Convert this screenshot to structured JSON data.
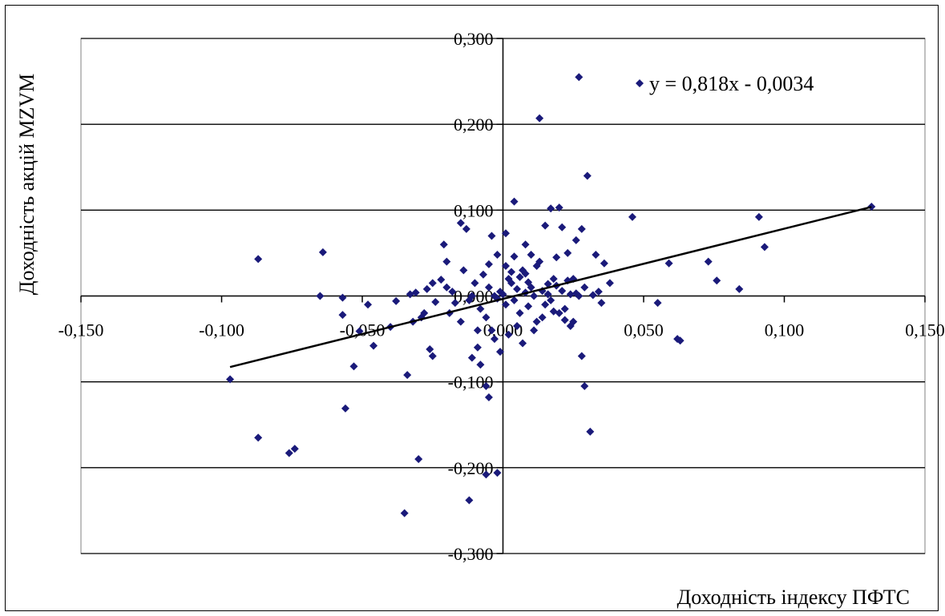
{
  "chart_data": {
    "type": "scatter",
    "xlabel": "Доходність індексу ПФТС",
    "ylabel": "Доходність акцій MZVM",
    "xlim": [
      -0.15,
      0.15
    ],
    "ylim": [
      -0.3,
      0.3
    ],
    "x_ticks": [
      "-0,150",
      "-0,100",
      "-0,050",
      "0,000",
      "0,050",
      "0,100",
      "0,150"
    ],
    "y_ticks": [
      "0,300",
      "0,200",
      "0,100",
      "0,000",
      "-0,100",
      "-0,200",
      "-0,300"
    ],
    "grid": "horizontal",
    "trendline": {
      "label": "y = 0,818x - 0,0034",
      "slope": 0.818,
      "intercept": -0.0034,
      "x_range": [
        -0.097,
        0.131
      ]
    },
    "marker_color": "#1a1a7a",
    "points": [
      [
        -0.097,
        -0.097
      ],
      [
        -0.087,
        -0.165
      ],
      [
        -0.087,
        0.043
      ],
      [
        -0.076,
        -0.183
      ],
      [
        -0.074,
        -0.178
      ],
      [
        -0.064,
        0.051
      ],
      [
        -0.065,
        0.0
      ],
      [
        -0.057,
        -0.002
      ],
      [
        -0.057,
        -0.022
      ],
      [
        -0.056,
        -0.131
      ],
      [
        -0.053,
        -0.082
      ],
      [
        -0.051,
        -0.041
      ],
      [
        -0.048,
        -0.01
      ],
      [
        -0.046,
        -0.058
      ],
      [
        -0.04,
        -0.036
      ],
      [
        -0.038,
        -0.006
      ],
      [
        -0.035,
        -0.253
      ],
      [
        -0.034,
        -0.092
      ],
      [
        -0.033,
        0.002
      ],
      [
        -0.032,
        -0.03
      ],
      [
        -0.031,
        0.004
      ],
      [
        -0.029,
        -0.025
      ],
      [
        -0.028,
        -0.02
      ],
      [
        -0.027,
        0.008
      ],
      [
        -0.026,
        -0.062
      ],
      [
        -0.025,
        -0.07
      ],
      [
        -0.024,
        -0.007
      ],
      [
        -0.022,
        0.019
      ],
      [
        -0.021,
        0.06
      ],
      [
        -0.02,
        0.04
      ],
      [
        -0.019,
        -0.02
      ],
      [
        -0.018,
        0.005
      ],
      [
        -0.017,
        -0.008
      ],
      [
        -0.015,
        -0.03
      ],
      [
        -0.014,
        0.03
      ],
      [
        -0.012,
        -0.005
      ],
      [
        -0.011,
        0.0
      ],
      [
        -0.01,
        0.015
      ],
      [
        -0.009,
        -0.06
      ],
      [
        -0.008,
        -0.015
      ],
      [
        -0.007,
        0.025
      ],
      [
        -0.006,
        -0.025
      ],
      [
        -0.005,
        0.01
      ],
      [
        -0.004,
        -0.04
      ],
      [
        -0.003,
        0.0
      ],
      [
        -0.002,
        -0.003
      ],
      [
        -0.001,
        0.005
      ],
      [
        0.0,
        0.002
      ],
      [
        0.001,
        -0.01
      ],
      [
        0.002,
        0.02
      ],
      [
        0.003,
        0.015
      ],
      [
        0.004,
        -0.005
      ],
      [
        0.005,
        0.008
      ],
      [
        0.006,
        -0.02
      ],
      [
        0.007,
        0.03
      ],
      [
        0.008,
        0.004
      ],
      [
        0.009,
        -0.012
      ],
      [
        0.01,
        0.01
      ],
      [
        0.011,
        0.0
      ],
      [
        0.012,
        -0.03
      ],
      [
        0.013,
        0.04
      ],
      [
        0.014,
        0.006
      ],
      [
        0.015,
        -0.01
      ],
      [
        0.016,
        0.002
      ],
      [
        0.017,
        -0.005
      ],
      [
        0.018,
        0.02
      ],
      [
        0.019,
        0.045
      ],
      [
        0.02,
        -0.02
      ],
      [
        0.021,
        0.006
      ],
      [
        0.022,
        -0.015
      ],
      [
        0.023,
        0.05
      ],
      [
        0.024,
        0.002
      ],
      [
        0.025,
        -0.03
      ],
      [
        0.026,
        0.003
      ],
      [
        0.027,
        0.0
      ],
      [
        0.028,
        0.078
      ],
      [
        0.029,
        0.01
      ],
      [
        -0.015,
        0.085
      ],
      [
        -0.013,
        0.078
      ],
      [
        -0.011,
        -0.072
      ],
      [
        -0.009,
        -0.04
      ],
      [
        -0.008,
        -0.08
      ],
      [
        -0.006,
        -0.105
      ],
      [
        -0.005,
        -0.118
      ],
      [
        -0.004,
        0.07
      ],
      [
        -0.003,
        -0.05
      ],
      [
        -0.002,
        0.048
      ],
      [
        -0.001,
        -0.065
      ],
      [
        0.001,
        0.035
      ],
      [
        0.002,
        -0.045
      ],
      [
        0.003,
        0.028
      ],
      [
        0.004,
        0.11
      ],
      [
        0.005,
        -0.035
      ],
      [
        0.006,
        0.022
      ],
      [
        0.007,
        -0.055
      ],
      [
        0.008,
        0.06
      ],
      [
        0.009,
        0.016
      ],
      [
        0.011,
        -0.04
      ],
      [
        0.012,
        0.035
      ],
      [
        0.014,
        -0.025
      ],
      [
        0.015,
        0.082
      ],
      [
        0.016,
        0.014
      ],
      [
        0.017,
        0.102
      ],
      [
        0.018,
        -0.018
      ],
      [
        0.019,
        0.012
      ],
      [
        0.02,
        0.103
      ],
      [
        0.021,
        0.08
      ],
      [
        0.022,
        -0.028
      ],
      [
        0.023,
        0.018
      ],
      [
        0.024,
        -0.035
      ],
      [
        0.025,
        0.02
      ],
      [
        0.026,
        0.065
      ],
      [
        0.027,
        0.255
      ],
      [
        0.028,
        -0.07
      ],
      [
        0.029,
        -0.105
      ],
      [
        0.03,
        0.14
      ],
      [
        0.031,
        -0.158
      ],
      [
        0.032,
        0.001
      ],
      [
        0.033,
        0.048
      ],
      [
        0.034,
        0.005
      ],
      [
        0.035,
        -0.008
      ],
      [
        0.036,
        0.038
      ],
      [
        0.038,
        0.015
      ],
      [
        0.046,
        0.092
      ],
      [
        0.055,
        -0.008
      ],
      [
        0.059,
        0.038
      ],
      [
        0.062,
        -0.05
      ],
      [
        0.063,
        -0.052
      ],
      [
        0.073,
        0.04
      ],
      [
        0.076,
        0.018
      ],
      [
        0.084,
        0.008
      ],
      [
        0.091,
        0.092
      ],
      [
        0.093,
        0.057
      ],
      [
        0.131,
        0.104
      ],
      [
        0.013,
        0.207
      ],
      [
        -0.012,
        -0.238
      ],
      [
        -0.03,
        -0.19
      ],
      [
        -0.006,
        -0.208
      ],
      [
        -0.002,
        -0.206
      ],
      [
        0.001,
        0.073
      ],
      [
        -0.005,
        0.037
      ],
      [
        0.004,
        0.046
      ],
      [
        -0.02,
        0.01
      ],
      [
        0.01,
        0.048
      ],
      [
        0.008,
        0.026
      ],
      [
        -0.025,
        0.015
      ]
    ]
  }
}
